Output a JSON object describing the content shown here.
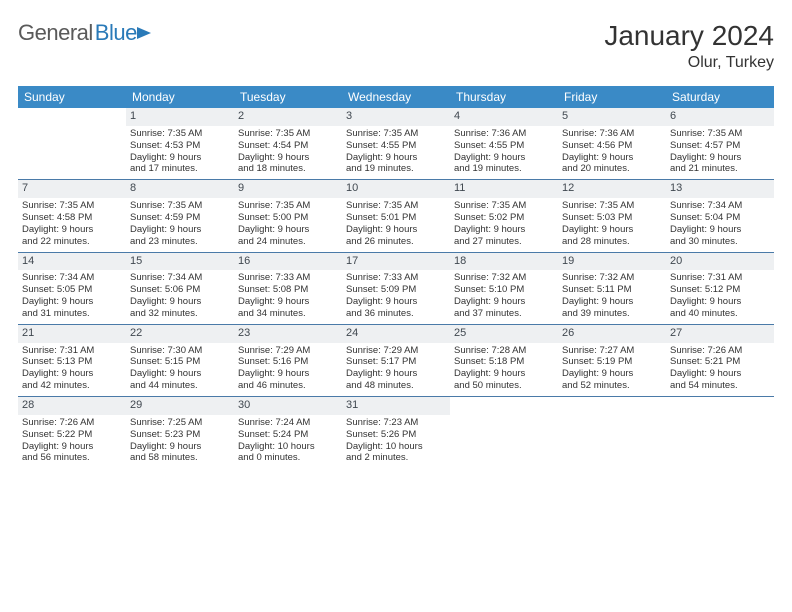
{
  "logo": {
    "word1": "General",
    "word2": "Blue"
  },
  "title": "January 2024",
  "location": "Olur, Turkey",
  "headers": [
    "Sunday",
    "Monday",
    "Tuesday",
    "Wednesday",
    "Thursday",
    "Friday",
    "Saturday"
  ],
  "header_bg": "#3a8ac6",
  "header_fg": "#ffffff",
  "daynum_bg": "#eef0f2",
  "week_border": "#4a7aa8",
  "weeks": [
    [
      null,
      {
        "n": "1",
        "sr": "Sunrise: 7:35 AM",
        "ss": "Sunset: 4:53 PM",
        "d1": "Daylight: 9 hours",
        "d2": "and 17 minutes."
      },
      {
        "n": "2",
        "sr": "Sunrise: 7:35 AM",
        "ss": "Sunset: 4:54 PM",
        "d1": "Daylight: 9 hours",
        "d2": "and 18 minutes."
      },
      {
        "n": "3",
        "sr": "Sunrise: 7:35 AM",
        "ss": "Sunset: 4:55 PM",
        "d1": "Daylight: 9 hours",
        "d2": "and 19 minutes."
      },
      {
        "n": "4",
        "sr": "Sunrise: 7:36 AM",
        "ss": "Sunset: 4:55 PM",
        "d1": "Daylight: 9 hours",
        "d2": "and 19 minutes."
      },
      {
        "n": "5",
        "sr": "Sunrise: 7:36 AM",
        "ss": "Sunset: 4:56 PM",
        "d1": "Daylight: 9 hours",
        "d2": "and 20 minutes."
      },
      {
        "n": "6",
        "sr": "Sunrise: 7:35 AM",
        "ss": "Sunset: 4:57 PM",
        "d1": "Daylight: 9 hours",
        "d2": "and 21 minutes."
      }
    ],
    [
      {
        "n": "7",
        "sr": "Sunrise: 7:35 AM",
        "ss": "Sunset: 4:58 PM",
        "d1": "Daylight: 9 hours",
        "d2": "and 22 minutes."
      },
      {
        "n": "8",
        "sr": "Sunrise: 7:35 AM",
        "ss": "Sunset: 4:59 PM",
        "d1": "Daylight: 9 hours",
        "d2": "and 23 minutes."
      },
      {
        "n": "9",
        "sr": "Sunrise: 7:35 AM",
        "ss": "Sunset: 5:00 PM",
        "d1": "Daylight: 9 hours",
        "d2": "and 24 minutes."
      },
      {
        "n": "10",
        "sr": "Sunrise: 7:35 AM",
        "ss": "Sunset: 5:01 PM",
        "d1": "Daylight: 9 hours",
        "d2": "and 26 minutes."
      },
      {
        "n": "11",
        "sr": "Sunrise: 7:35 AM",
        "ss": "Sunset: 5:02 PM",
        "d1": "Daylight: 9 hours",
        "d2": "and 27 minutes."
      },
      {
        "n": "12",
        "sr": "Sunrise: 7:35 AM",
        "ss": "Sunset: 5:03 PM",
        "d1": "Daylight: 9 hours",
        "d2": "and 28 minutes."
      },
      {
        "n": "13",
        "sr": "Sunrise: 7:34 AM",
        "ss": "Sunset: 5:04 PM",
        "d1": "Daylight: 9 hours",
        "d2": "and 30 minutes."
      }
    ],
    [
      {
        "n": "14",
        "sr": "Sunrise: 7:34 AM",
        "ss": "Sunset: 5:05 PM",
        "d1": "Daylight: 9 hours",
        "d2": "and 31 minutes."
      },
      {
        "n": "15",
        "sr": "Sunrise: 7:34 AM",
        "ss": "Sunset: 5:06 PM",
        "d1": "Daylight: 9 hours",
        "d2": "and 32 minutes."
      },
      {
        "n": "16",
        "sr": "Sunrise: 7:33 AM",
        "ss": "Sunset: 5:08 PM",
        "d1": "Daylight: 9 hours",
        "d2": "and 34 minutes."
      },
      {
        "n": "17",
        "sr": "Sunrise: 7:33 AM",
        "ss": "Sunset: 5:09 PM",
        "d1": "Daylight: 9 hours",
        "d2": "and 36 minutes."
      },
      {
        "n": "18",
        "sr": "Sunrise: 7:32 AM",
        "ss": "Sunset: 5:10 PM",
        "d1": "Daylight: 9 hours",
        "d2": "and 37 minutes."
      },
      {
        "n": "19",
        "sr": "Sunrise: 7:32 AM",
        "ss": "Sunset: 5:11 PM",
        "d1": "Daylight: 9 hours",
        "d2": "and 39 minutes."
      },
      {
        "n": "20",
        "sr": "Sunrise: 7:31 AM",
        "ss": "Sunset: 5:12 PM",
        "d1": "Daylight: 9 hours",
        "d2": "and 40 minutes."
      }
    ],
    [
      {
        "n": "21",
        "sr": "Sunrise: 7:31 AM",
        "ss": "Sunset: 5:13 PM",
        "d1": "Daylight: 9 hours",
        "d2": "and 42 minutes."
      },
      {
        "n": "22",
        "sr": "Sunrise: 7:30 AM",
        "ss": "Sunset: 5:15 PM",
        "d1": "Daylight: 9 hours",
        "d2": "and 44 minutes."
      },
      {
        "n": "23",
        "sr": "Sunrise: 7:29 AM",
        "ss": "Sunset: 5:16 PM",
        "d1": "Daylight: 9 hours",
        "d2": "and 46 minutes."
      },
      {
        "n": "24",
        "sr": "Sunrise: 7:29 AM",
        "ss": "Sunset: 5:17 PM",
        "d1": "Daylight: 9 hours",
        "d2": "and 48 minutes."
      },
      {
        "n": "25",
        "sr": "Sunrise: 7:28 AM",
        "ss": "Sunset: 5:18 PM",
        "d1": "Daylight: 9 hours",
        "d2": "and 50 minutes."
      },
      {
        "n": "26",
        "sr": "Sunrise: 7:27 AM",
        "ss": "Sunset: 5:19 PM",
        "d1": "Daylight: 9 hours",
        "d2": "and 52 minutes."
      },
      {
        "n": "27",
        "sr": "Sunrise: 7:26 AM",
        "ss": "Sunset: 5:21 PM",
        "d1": "Daylight: 9 hours",
        "d2": "and 54 minutes."
      }
    ],
    [
      {
        "n": "28",
        "sr": "Sunrise: 7:26 AM",
        "ss": "Sunset: 5:22 PM",
        "d1": "Daylight: 9 hours",
        "d2": "and 56 minutes."
      },
      {
        "n": "29",
        "sr": "Sunrise: 7:25 AM",
        "ss": "Sunset: 5:23 PM",
        "d1": "Daylight: 9 hours",
        "d2": "and 58 minutes."
      },
      {
        "n": "30",
        "sr": "Sunrise: 7:24 AM",
        "ss": "Sunset: 5:24 PM",
        "d1": "Daylight: 10 hours",
        "d2": "and 0 minutes."
      },
      {
        "n": "31",
        "sr": "Sunrise: 7:23 AM",
        "ss": "Sunset: 5:26 PM",
        "d1": "Daylight: 10 hours",
        "d2": "and 2 minutes."
      },
      null,
      null,
      null
    ]
  ]
}
